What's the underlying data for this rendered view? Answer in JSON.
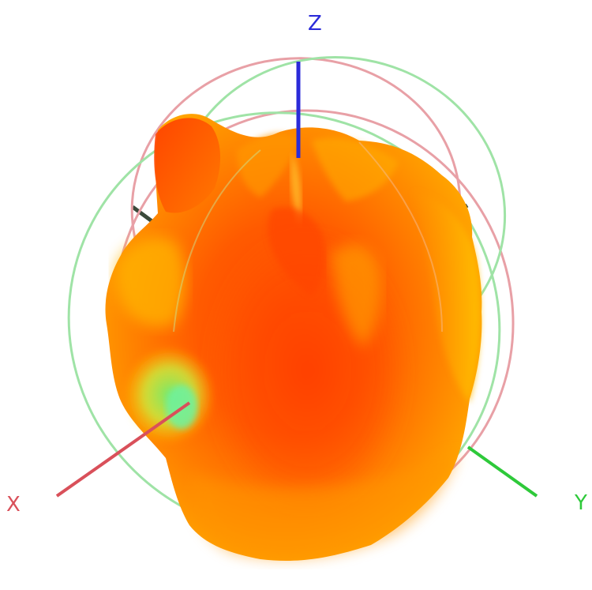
{
  "axes": {
    "z": {
      "label": "Z",
      "color": "#2b2bd9"
    },
    "x": {
      "label": "X",
      "color": "#d9505a"
    },
    "y": {
      "label": "Y",
      "color": "#2ec93a"
    },
    "hidden_axis_color": "#3b4a3b"
  },
  "colors": {
    "background": "#ffffff",
    "surface_high": "#ff5400",
    "surface_mid": "#ff8c00",
    "surface_low": "#ffd21a",
    "surface_min": "#7df070",
    "ring_red": "#e8a0a6",
    "ring_green": "#9fe3a6"
  },
  "surface_colormap": [
    "red",
    "orange",
    "yellow",
    "green"
  ]
}
